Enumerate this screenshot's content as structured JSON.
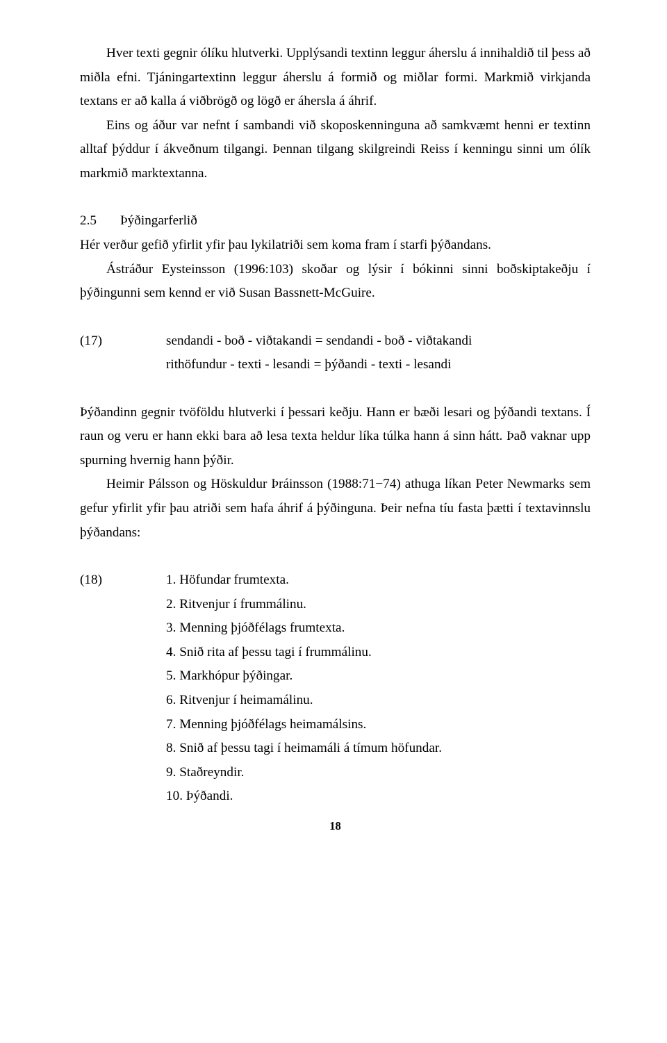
{
  "paragraphs": {
    "p1a": "Hver texti gegnir ólíku hlutverki. Upplýsandi textinn leggur áherslu á innihaldið til þess að miðla efni. Tjáningartextinn leggur áherslu á formið og miðlar formi. Markmið virkjanda textans er að kalla á viðbrögð og lögð er áhersla á áhrif.",
    "p1b": "Eins og áður var nefnt í sambandi við skoposkenninguna að samkvæmt henni er textinn alltaf þýddur í ákveðnum tilgangi. Þennan tilgang skilgreindi Reiss í kenningu sinni um ólík markmið marktextanna.",
    "secNum": "2.5",
    "secTitle": "Þýðingarferlið",
    "p2a": "Hér verður gefið yfirlit yfir þau lykilatriði sem koma fram í starfi þýðandans.",
    "p2b": "Ástráður Eysteinsson (1996:103) skoðar og lýsir í bókinni sinni boðskiptakeðju í þýðingunni sem kennd er við Susan Bassnett-McGuire.",
    "ex17Label": "(17)",
    "ex17a": "sendandi - boð - viðtakandi = sendandi - boð - viðtakandi",
    "ex17b": "rithöfundur - texti - lesandi = þýðandi - texti - lesandi",
    "p3a": "Þýðandinn gegnir tvöföldu hlutverki í þessari keðju. Hann er bæði lesari og þýðandi textans. Í raun og veru er hann ekki bara að lesa texta heldur líka túlka hann á sinn hátt. Það vaknar upp spurning hvernig hann þýðir.",
    "p3b": "Heimir Pálsson og Höskuldur Þráinsson (1988:71−74) athuga líkan Peter Newmarks sem gefur yfirlit yfir þau atriði sem hafa áhrif á þýðinguna. Þeir nefna tíu fasta þætti í textavinnslu þýðandans:",
    "list18Label": "(18)",
    "list18": [
      "1. Höfundar frumtexta.",
      "2. Ritvenjur í frummálinu.",
      "3. Menning þjóðfélags frumtexta.",
      "4. Snið rita af þessu tagi í frummálinu.",
      "5. Markhópur þýðingar.",
      "6. Ritvenjur í heimamálinu.",
      "7. Menning þjóðfélags heimamálsins.",
      "8. Snið af þessu tagi í heimamáli á tímum höfundar.",
      "9. Staðreyndir.",
      "10. Þýðandi."
    ],
    "pageNumber": "18"
  },
  "style": {
    "fontFamily": "Times New Roman",
    "bodyFontSizePx": 19.2,
    "lineHeight": 1.8,
    "textColor": "#000000",
    "backgroundColor": "#ffffff",
    "pageWidthPx": 960,
    "pageHeightPx": 1501,
    "indentPx": 38,
    "labelColumnWidthPx": 124
  }
}
